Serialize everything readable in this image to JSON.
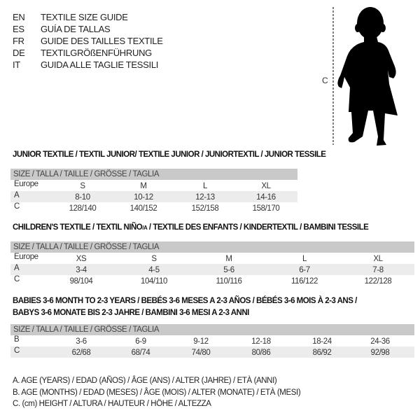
{
  "languages": [
    {
      "code": "EN",
      "text": "TEXTILE SIZE GUIDE"
    },
    {
      "code": "ES",
      "text": "GUÍA DE TALLAS"
    },
    {
      "code": "FR",
      "text": "GUIDE DES TAILLES TEXTILE"
    },
    {
      "code": "DE",
      "text": "TEXTILGRÖßENFÜHRUNG"
    },
    {
      "code": "IT",
      "text": "GUIDA ALLE TAGLIE TESSILI"
    }
  ],
  "figure": {
    "measure_label": "C",
    "icon": "child-silhouette"
  },
  "tables": [
    {
      "title": "JUNIOR TEXTILE / TEXTIL JUNIOR/ TEXTILE JUNIOR / JUNIORTEXTIL / JUNIOR TESSILE",
      "header": "SIZE / TALLA / TAILLE / GRÖSSE / TAGLIA",
      "rows": [
        {
          "label": "Europe",
          "values": [
            "S",
            "M",
            "L",
            "XL"
          ]
        },
        {
          "label": "A",
          "values": [
            "8-10",
            "10-12",
            "12-13",
            "14-16"
          ]
        },
        {
          "label": "C",
          "values": [
            "128/140",
            "140/152",
            "152/158",
            "158/170"
          ]
        }
      ]
    },
    {
      "title": "CHILDREN'S TEXTILE / TEXTIL NIÑO/A / TEXTILE DES ENFANTS / KINDERTEXTIL / BAMBINI TESSILE",
      "header": "SIZE / TALLA / TAILLE / GRÖSSE / TAGLIA",
      "rows": [
        {
          "label": "Europe",
          "values": [
            "XS",
            "S",
            "M",
            "L",
            "XL"
          ]
        },
        {
          "label": "A",
          "values": [
            "3-4",
            "4-5",
            "5-6",
            "6-7",
            "7-8"
          ]
        },
        {
          "label": "C",
          "values": [
            "98/104",
            "104/110",
            "110/116",
            "116/122",
            "122/128"
          ]
        }
      ]
    },
    {
      "title": "BABIES 3-6 MONTH TO 2-3 YEARS / BEBÉS 3-6 MESES A 2-3 AÑOS / BÉBÉS 3-6 MOIS À 2-3 ANS /",
      "title2": "BABYS 3-6 MONATE BIS 2-3 JAHRE / BAMBINI 3-6 MESI A 2-3 ANNI",
      "header": "SIZE / TALLA / TAILLE / GRÖSSE / TAGLIA",
      "rows": [
        {
          "label": "B",
          "values": [
            "3-6",
            "6-9",
            "9-12",
            "12-18",
            "18-24",
            "24-36"
          ]
        },
        {
          "label": "C",
          "values": [
            "62/68",
            "68/74",
            "74/80",
            "80/86",
            "86/92",
            "92/98"
          ]
        }
      ]
    }
  ],
  "legend": [
    "A. AGE (YEARS) / EDAD (AÑOS) / ÂGE (ANS) / ALTER (JAHRE) / ETÀ (ANNI)",
    "B. AGE (MONTHS) / EDAD (MESES) / ÂGE (MOIS) / ALTER (MONATE) / ETÀ (MESI)",
    "C. (cm) HEIGHT / ALTURA / HAUTEUR / HÖHE / ALTEZZA"
  ]
}
